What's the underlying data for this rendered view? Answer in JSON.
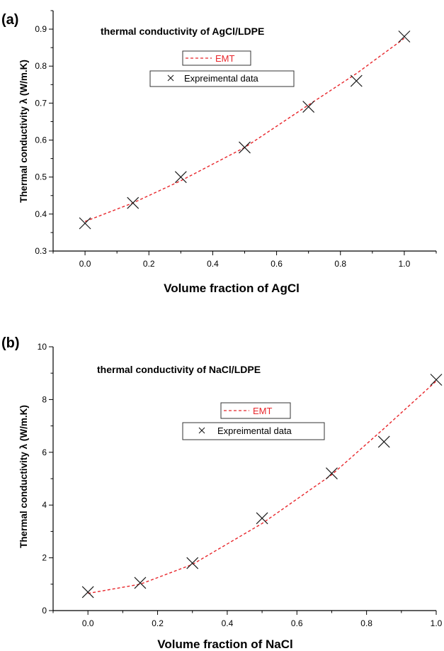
{
  "chart_data": [
    {
      "type": "line",
      "panel_label": "(a)",
      "title": "thermal conductivity of AgCl/LDPE",
      "xlabel": "Volume fraction of AgCl",
      "ylabel": "Thermal conductivity λ (W/m.K)",
      "xlim": [
        -0.1,
        1.1
      ],
      "ylim": [
        0.3,
        0.95
      ],
      "xticks": [
        0.0,
        0.2,
        0.4,
        0.6,
        0.8,
        1.0
      ],
      "xtick_labels": [
        "0.0",
        "0.2",
        "0.4",
        "0.6",
        "0.8",
        "1.0"
      ],
      "yticks": [
        0.3,
        0.4,
        0.5,
        0.6,
        0.7,
        0.8,
        0.9
      ],
      "ytick_labels": [
        "0.3",
        "0.4",
        "0.5",
        "0.6",
        "0.7",
        "0.8",
        "0.9"
      ],
      "grid": false,
      "legend_position": "top-center",
      "series": [
        {
          "name": "EMT",
          "style": "dashed-line",
          "color": "#e8262b",
          "x": [
            0.0,
            0.15,
            0.3,
            0.5,
            0.7,
            0.85,
            1.0
          ],
          "y": [
            0.38,
            0.43,
            0.49,
            0.58,
            0.695,
            0.78,
            0.875
          ]
        },
        {
          "name": "Expreimental data",
          "style": "x-marker",
          "color": "#1a1a1a",
          "x": [
            0.0,
            0.15,
            0.3,
            0.5,
            0.7,
            0.85,
            1.0
          ],
          "y": [
            0.375,
            0.43,
            0.5,
            0.58,
            0.69,
            0.76,
            0.88
          ]
        }
      ]
    },
    {
      "type": "line",
      "panel_label": "(b)",
      "title": "thermal conductivity of NaCl/LDPE",
      "xlabel": "Volume fraction of NaCl",
      "ylabel": "Thermal conductivity λ (W/m.K)",
      "xlim": [
        -0.1,
        1.0
      ],
      "ylim": [
        0,
        10
      ],
      "xticks": [
        0.0,
        0.2,
        0.4,
        0.6,
        0.8,
        1.0
      ],
      "xtick_labels": [
        "0.0",
        "0.2",
        "0.4",
        "0.6",
        "0.8",
        "1.0"
      ],
      "yticks": [
        0,
        2,
        4,
        6,
        8,
        10
      ],
      "ytick_labels": [
        "0",
        "2",
        "4",
        "6",
        "8",
        "10"
      ],
      "grid": false,
      "legend_position": "top-center",
      "series": [
        {
          "name": "EMT",
          "style": "dashed-line",
          "color": "#e8262b",
          "x": [
            0.0,
            0.15,
            0.3,
            0.5,
            0.7,
            0.85,
            1.0
          ],
          "y": [
            0.65,
            1.0,
            1.75,
            3.3,
            5.15,
            6.9,
            8.7
          ]
        },
        {
          "name": "Expreimental data",
          "style": "x-marker",
          "color": "#1a1a1a",
          "x": [
            0.0,
            0.15,
            0.3,
            0.5,
            0.7,
            0.85,
            1.0
          ],
          "y": [
            0.7,
            1.05,
            1.8,
            3.5,
            5.2,
            6.4,
            8.75
          ]
        }
      ]
    }
  ]
}
